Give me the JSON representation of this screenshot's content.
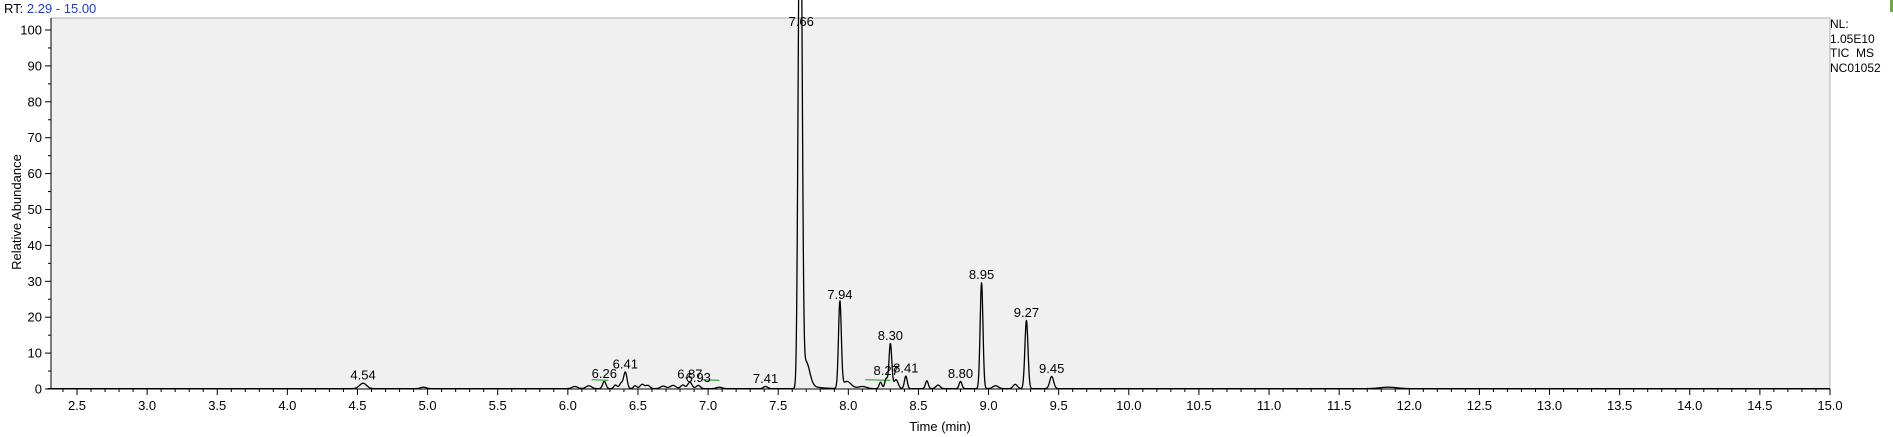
{
  "header": {
    "rt_prefix": "RT:",
    "rt_range": "2.29 - 15.00"
  },
  "info_box": {
    "nl_label": "NL:",
    "nl_value": "1.05E10",
    "scan_filter": "TIC  MS",
    "sample_name": "NC01052"
  },
  "colors": {
    "plot_background": "#f0f0f0",
    "trace": "#000000",
    "baseline_marks": "#3aa33a",
    "rt_range_text": "#1f3fbf"
  },
  "chart_data": {
    "type": "line",
    "title": "",
    "xlabel": "Time (min)",
    "ylabel": "Relative Abundance",
    "xlim": [
      2.29,
      15.0
    ],
    "ylim": [
      0,
      105
    ],
    "x_ticks": [
      "2.5",
      "3.0",
      "3.5",
      "4.0",
      "4.5",
      "5.0",
      "5.5",
      "6.0",
      "6.5",
      "7.0",
      "7.5",
      "8.0",
      "8.5",
      "9.0",
      "9.5",
      "10.0",
      "10.5",
      "11.0",
      "11.5",
      "12.0",
      "12.5",
      "13.0",
      "13.5",
      "14.0",
      "14.5",
      "15.0"
    ],
    "y_ticks": [
      "0",
      "10",
      "20",
      "30",
      "40",
      "50",
      "60",
      "70",
      "80",
      "90",
      "100"
    ],
    "grid": false,
    "legend": "none",
    "series": [
      {
        "peaks": [
          {
            "rt": 4.54,
            "height": 1.5,
            "width": 0.025,
            "labeled": true
          },
          {
            "rt": 4.97,
            "height": 0.4,
            "width": 0.02,
            "labeled": false
          },
          {
            "rt": 6.05,
            "height": 0.6,
            "width": 0.02,
            "labeled": false
          },
          {
            "rt": 6.15,
            "height": 0.8,
            "width": 0.02,
            "labeled": false
          },
          {
            "rt": 6.26,
            "height": 2.0,
            "width": 0.012,
            "labeled": true
          },
          {
            "rt": 6.34,
            "height": 1.0,
            "width": 0.012,
            "labeled": false
          },
          {
            "rt": 6.38,
            "height": 1.5,
            "width": 0.012,
            "labeled": false
          },
          {
            "rt": 6.41,
            "height": 4.6,
            "width": 0.012,
            "labeled": true
          },
          {
            "rt": 6.48,
            "height": 0.8,
            "width": 0.012,
            "labeled": false
          },
          {
            "rt": 6.53,
            "height": 1.2,
            "width": 0.015,
            "labeled": false
          },
          {
            "rt": 6.57,
            "height": 0.9,
            "width": 0.015,
            "labeled": false
          },
          {
            "rt": 6.68,
            "height": 0.7,
            "width": 0.02,
            "labeled": false
          },
          {
            "rt": 6.75,
            "height": 0.9,
            "width": 0.02,
            "labeled": false
          },
          {
            "rt": 6.82,
            "height": 1.0,
            "width": 0.015,
            "labeled": false
          },
          {
            "rt": 6.87,
            "height": 1.8,
            "width": 0.015,
            "labeled": true
          },
          {
            "rt": 6.93,
            "height": 0.9,
            "width": 0.015,
            "labeled": true
          },
          {
            "rt": 7.08,
            "height": 0.4,
            "width": 0.02,
            "labeled": false
          },
          {
            "rt": 7.41,
            "height": 0.6,
            "width": 0.015,
            "labeled": true
          },
          {
            "rt": 7.649,
            "height": 96.0,
            "width": 0.01,
            "labeled": false
          },
          {
            "rt": 7.664,
            "height": 99.0,
            "width": 0.01,
            "labeled": true
          },
          {
            "rt": 7.7,
            "height": 6.0,
            "width": 0.025,
            "labeled": false
          },
          {
            "rt": 7.94,
            "height": 24.0,
            "width": 0.01,
            "labeled": true
          },
          {
            "rt": 7.99,
            "height": 2.0,
            "width": 0.03,
            "labeled": false
          },
          {
            "rt": 8.1,
            "height": 0.6,
            "width": 0.03,
            "labeled": false
          },
          {
            "rt": 8.23,
            "height": 1.8,
            "width": 0.01,
            "labeled": false
          },
          {
            "rt": 8.27,
            "height": 2.8,
            "width": 0.01,
            "labeled": true
          },
          {
            "rt": 8.3,
            "height": 12.5,
            "width": 0.01,
            "labeled": true
          },
          {
            "rt": 8.34,
            "height": 2.5,
            "width": 0.015,
            "labeled": false
          },
          {
            "rt": 8.41,
            "height": 3.5,
            "width": 0.01,
            "labeled": true
          },
          {
            "rt": 8.56,
            "height": 2.2,
            "width": 0.01,
            "labeled": false
          },
          {
            "rt": 8.64,
            "height": 1.0,
            "width": 0.015,
            "labeled": false
          },
          {
            "rt": 8.8,
            "height": 2.0,
            "width": 0.01,
            "labeled": true
          },
          {
            "rt": 8.95,
            "height": 29.5,
            "width": 0.01,
            "labeled": true
          },
          {
            "rt": 9.05,
            "height": 0.8,
            "width": 0.02,
            "labeled": false
          },
          {
            "rt": 9.19,
            "height": 1.2,
            "width": 0.015,
            "labeled": false
          },
          {
            "rt": 9.27,
            "height": 19.0,
            "width": 0.011,
            "labeled": true
          },
          {
            "rt": 9.45,
            "height": 3.4,
            "width": 0.014,
            "labeled": true
          },
          {
            "rt": 11.85,
            "height": 0.4,
            "width": 0.06,
            "labeled": false
          }
        ],
        "baseline_segments": [
          [
            6.17,
            6.29
          ],
          [
            8.12,
            8.3
          ],
          [
            6.95,
            7.08
          ]
        ]
      }
    ]
  }
}
